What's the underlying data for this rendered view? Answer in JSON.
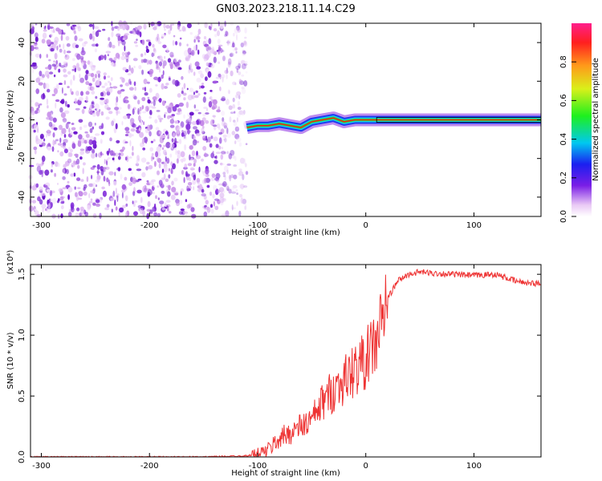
{
  "title": "GN03.2023.218.11.14.C29",
  "chart_data": [
    {
      "type": "heatmap",
      "xlabel": "Height of straight line (km)",
      "ylabel": "Frequency (Hz)",
      "xlim": [
        -310,
        162
      ],
      "ylim": [
        -50,
        50
      ],
      "x_ticks": [
        -300,
        -200,
        -100,
        0,
        100
      ],
      "y_ticks": [
        -40,
        -20,
        0,
        20,
        40
      ],
      "colorbar": {
        "label": "Normalized spectral amplitude",
        "range": [
          0,
          1
        ],
        "ticks": [
          "0.0",
          "0.2",
          "0.4",
          "0.6",
          "0.8"
        ]
      },
      "noise_region_x": [
        -310,
        -110
      ],
      "signal_track": {
        "x": [
          -110,
          -100,
          -90,
          -80,
          -70,
          -60,
          -50,
          -40,
          -30,
          -20,
          -10,
          0,
          10,
          50,
          100,
          162
        ],
        "frequency": [
          -4,
          -3,
          -3,
          -2,
          -3,
          -4,
          -1,
          0,
          1,
          -1,
          0,
          0,
          0,
          0,
          0,
          0
        ]
      }
    },
    {
      "type": "line",
      "xlabel": "Height of straight line (km)",
      "ylabel": "SNR (10 * v/v)",
      "y_scale_label": "(x10⁴)",
      "xlim": [
        -310,
        162
      ],
      "ylim": [
        0,
        1.58
      ],
      "x_ticks": [
        -300,
        -200,
        -100,
        0,
        100
      ],
      "y_ticks": [
        "0.0",
        "0.5",
        "1.0",
        "1.5"
      ],
      "series": [
        {
          "color": "#ee3333",
          "x": [
            -310,
            -250,
            -200,
            -150,
            -110,
            -100,
            -90,
            -80,
            -70,
            -60,
            -50,
            -40,
            -30,
            -20,
            -10,
            0,
            10,
            20,
            30,
            40,
            50,
            60,
            80,
            100,
            120,
            140,
            162
          ],
          "y": [
            0.0,
            0.0,
            0.0,
            0.0,
            0.01,
            0.02,
            0.06,
            0.15,
            0.2,
            0.25,
            0.3,
            0.45,
            0.55,
            0.63,
            0.72,
            0.8,
            0.95,
            1.3,
            1.45,
            1.5,
            1.52,
            1.51,
            1.5,
            1.49,
            1.5,
            1.44,
            1.42
          ]
        }
      ]
    }
  ]
}
